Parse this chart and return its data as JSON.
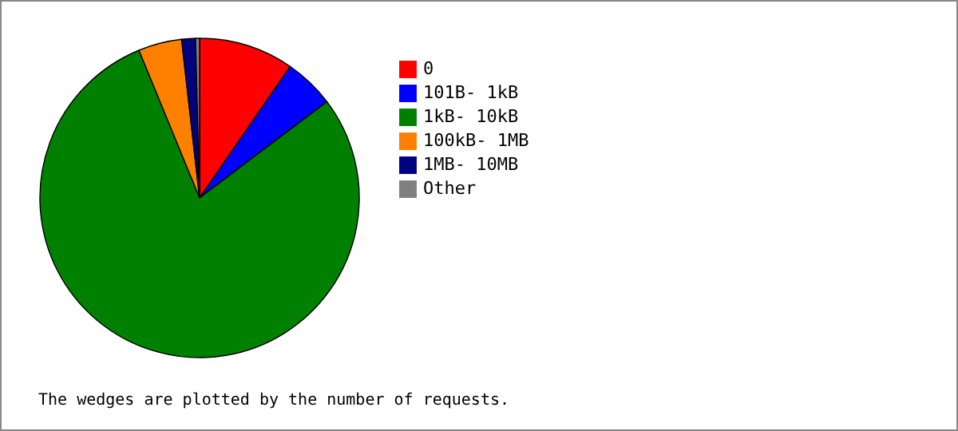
{
  "chart_data": {
    "type": "pie",
    "categories": [
      "0",
      "101B- 1kB",
      "1kB- 10kB",
      "100kB- 1MB",
      "1MB- 10MB",
      "Other"
    ],
    "values": [
      9.6,
      5.1,
      79.1,
      4.4,
      1.4,
      0.4
    ],
    "colors": [
      "#ff0000",
      "#0000ff",
      "#008000",
      "#ff8000",
      "#000080",
      "#808080"
    ],
    "legend": "right",
    "annotations": [
      "The wedges are plotted by the number of requests."
    ]
  }
}
